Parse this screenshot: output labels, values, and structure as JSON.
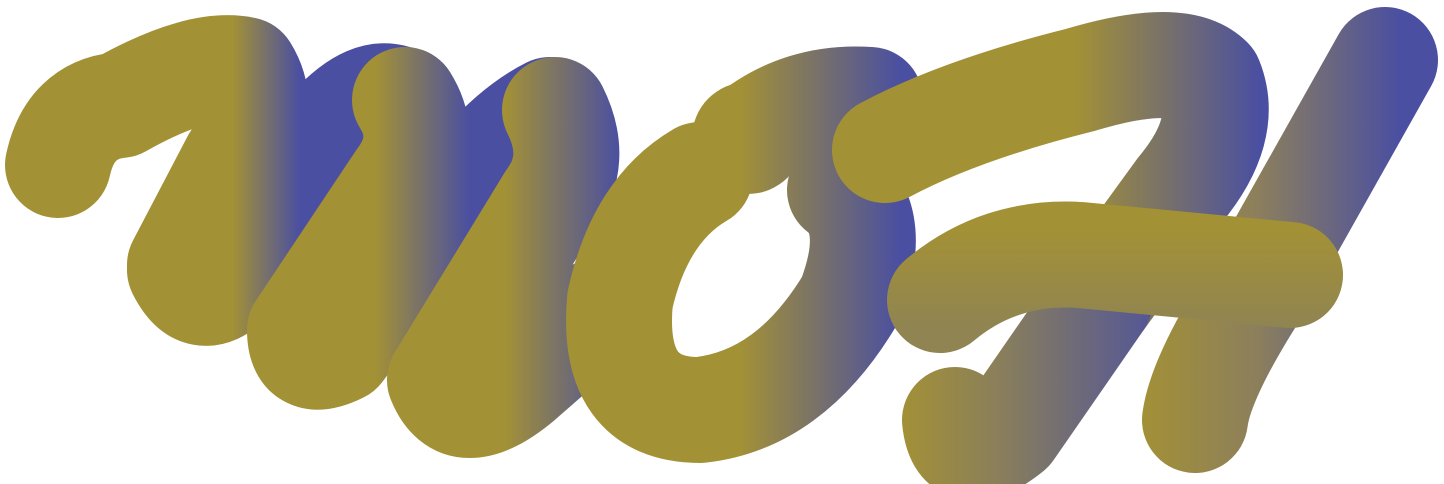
{
  "artwork": {
    "wordmark_text": "noH",
    "colors": {
      "olive": "#a39136",
      "blue": "#4a4fa1",
      "background": "#ffffff"
    },
    "style": "puffy tube lettering with olive-to-blue gradient shading"
  }
}
